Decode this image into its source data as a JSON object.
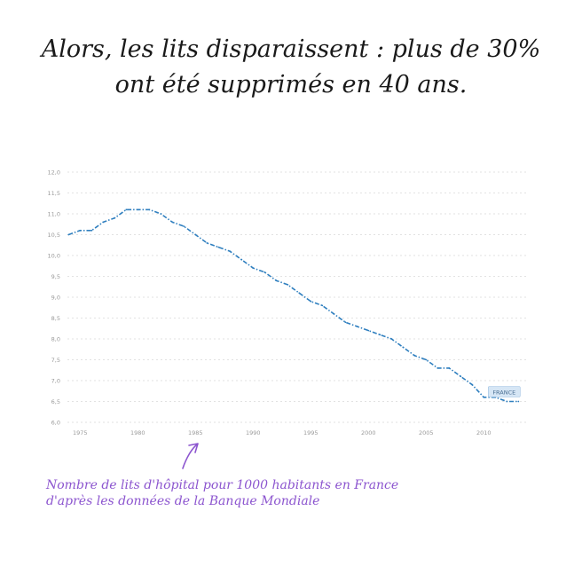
{
  "headline": {
    "line1": "Alors, les lits disparaissent : plus de 30%",
    "line2": "ont été supprimés en 40 ans."
  },
  "caption": {
    "line1": "Nombre de lits d'hôpital pour 1000 habitants en France",
    "line2": "d'après les données de la Banque Mondiale"
  },
  "colors": {
    "line": "#2f7fbf",
    "grid": "#d9d9d9",
    "tick": "#9a9a9a",
    "caption": "#8c55cf",
    "label_bg": "#d6e6f5"
  },
  "chart_data": {
    "type": "line",
    "title": "",
    "xlabel": "",
    "ylabel": "",
    "xlim": [
      1973.9,
      2013.9
    ],
    "ylim": [
      6.0,
      12.0
    ],
    "xticks": [
      "1975",
      "1980",
      "1985",
      "1990",
      "1995",
      "2000",
      "2005",
      "2010"
    ],
    "yticks": [
      "6,0",
      "6,5",
      "7,0",
      "7,5",
      "8,0",
      "8,5",
      "9,0",
      "9,5",
      "10,0",
      "10,5",
      "11,0",
      "11,5",
      "12,0"
    ],
    "grid": true,
    "line_style": "dash-dot",
    "series": [
      {
        "name": "FRANCE",
        "x": [
          1974,
          1975,
          1976,
          1977,
          1978,
          1979,
          1980,
          1981,
          1982,
          1983,
          1984,
          1985,
          1986,
          1987,
          1988,
          1989,
          1990,
          1991,
          1992,
          1993,
          1994,
          1995,
          1996,
          1997,
          1998,
          1999,
          2000,
          2001,
          2002,
          2003,
          2004,
          2005,
          2006,
          2007,
          2008,
          2009,
          2010,
          2011,
          2012,
          2013
        ],
        "y": [
          10.5,
          10.6,
          10.6,
          10.8,
          10.9,
          11.1,
          11.1,
          11.1,
          11.0,
          10.8,
          10.7,
          10.5,
          10.3,
          10.2,
          10.1,
          9.9,
          9.7,
          9.6,
          9.4,
          9.3,
          9.1,
          8.9,
          8.8,
          8.6,
          8.4,
          8.3,
          8.2,
          8.1,
          8.0,
          7.8,
          7.6,
          7.5,
          7.3,
          7.3,
          7.1,
          6.9,
          6.6,
          6.6,
          6.5,
          6.5
        ]
      }
    ]
  }
}
